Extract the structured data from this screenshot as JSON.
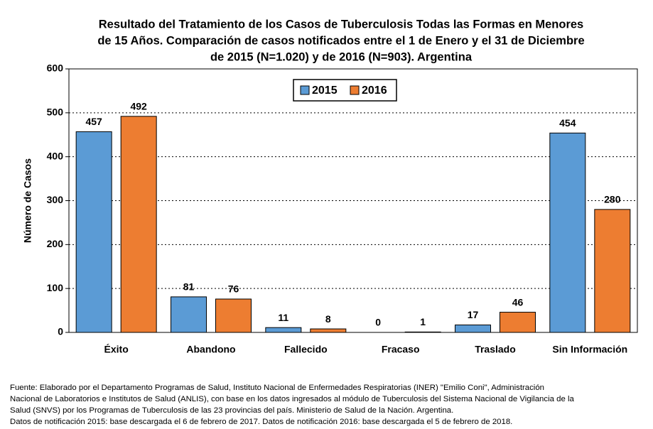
{
  "chart_data": {
    "type": "bar",
    "title": [
      "Resultado del Tratamiento de los Casos de Tuberculosis Todas las Formas en Menores",
      "de 15 Años. Comparación de casos notificados entre el 1 de Enero y el 31 de Diciembre",
      "de 2015 (N=1.020) y de 2016 (N=903). Argentina"
    ],
    "y_label": "Número de Casos",
    "categories": [
      "Éxito",
      "Abandono",
      "Fallecido",
      "Fracaso",
      "Traslado",
      "Sin Información"
    ],
    "series": [
      {
        "name": "2015",
        "color": "#5b9bd5",
        "values": [
          457,
          81,
          11,
          0,
          17,
          454
        ]
      },
      {
        "name": "2016",
        "color": "#ed7d31",
        "values": [
          492,
          76,
          8,
          1,
          46,
          280
        ]
      }
    ],
    "ylim": [
      0,
      600
    ],
    "yticks": [
      0,
      100,
      200,
      300,
      400,
      500,
      600
    ],
    "grid": true,
    "legend": "top-center",
    "footnote": [
      "Fuente: Elaborado por el Departamento Programas de Salud, Instituto Nacional de Enfermedades Respiratorias (INER) \"Emilio Coni\", Administración",
      "Nacional de Laboratorios e Institutos de Salud (ANLIS), con base en los datos ingresados al módulo de Tuberculosis del Sistema Nacional de Vigilancia de la",
      "Salud (SNVS) por los Programas de Tuberculosis de las 23 provincias del país. Ministerio de Salud de la Nación. Argentina.",
      "Datos de notificación 2015: base descargada el 6 de febrero de 2017. Datos de notificación 2016: base descargada el 5 de febrero de 2018."
    ]
  }
}
